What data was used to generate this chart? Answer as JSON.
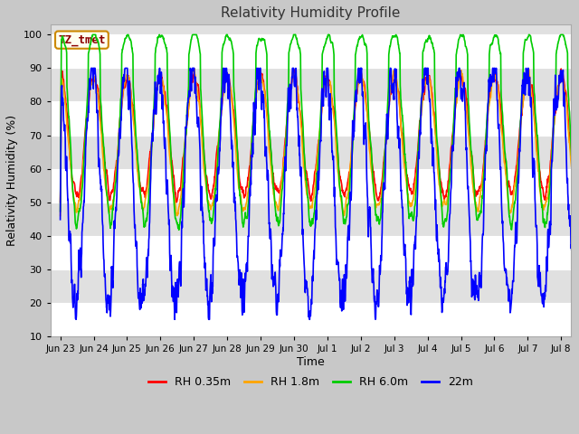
{
  "title": "Relativity Humidity Profile",
  "xlabel": "Time",
  "ylabel": "Relativity Humidity (%)",
  "ylim": [
    10,
    103
  ],
  "yticks": [
    10,
    20,
    30,
    40,
    50,
    60,
    70,
    80,
    90,
    100
  ],
  "fig_bg_color": "#c8c8c8",
  "plot_bg_color": "#e0e0e0",
  "legend_label": "TZ_tmet",
  "series_labels": [
    "RH 0.35m",
    "RH 1.8m",
    "RH 6.0m",
    "22m"
  ],
  "series_colors": [
    "#ff0000",
    "#ffa500",
    "#00cc00",
    "#0000ff"
  ],
  "x_tick_labels": [
    "Jun 23",
    "Jun 24",
    "Jun 25",
    "Jun 26",
    "Jun 27",
    "Jun 28",
    "Jun 29",
    "Jun 30",
    "Jul 1",
    "Jul 2",
    "Jul 3",
    "Jul 4",
    "Jul 5",
    "Jul 6",
    "Jul 7",
    "Jul 8"
  ],
  "grid_color": "#ffffff",
  "alt_band_color": "#d8d8d8",
  "linewidth": 1.2
}
